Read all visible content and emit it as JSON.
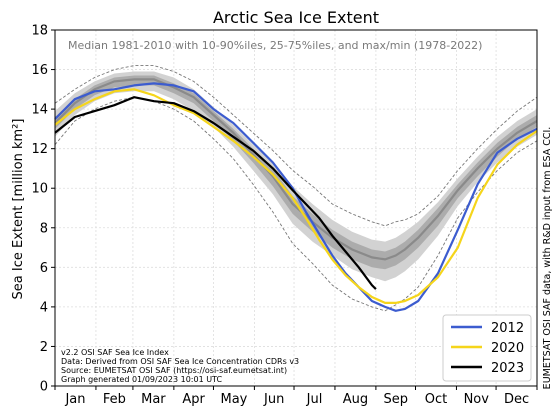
{
  "chart_data": {
    "type": "line",
    "title": "Arctic Sea Ice Extent",
    "subtitle": "Median 1981-2010 with 10-90%iles, 25-75%iles, and max/min (1978-2022)",
    "ylabel": "Sea Ice Extent [million km²]",
    "xlabel": "",
    "ylim": [
      0,
      18
    ],
    "yticks": [
      0,
      2,
      4,
      6,
      8,
      10,
      12,
      14,
      16,
      18
    ],
    "xlim": [
      0,
      365
    ],
    "months": [
      "Jan",
      "Feb",
      "Mar",
      "Apr",
      "May",
      "Jun",
      "Jul",
      "Aug",
      "Sep",
      "Oct",
      "Nov",
      "Dec"
    ],
    "grid": true,
    "legend_position": "bottom-right",
    "side_note": "EUMETSAT OSI SAF data, with R&D input from ESA CCI.",
    "notes": [
      "v2.2 OSI SAF Sea Ice Index",
      "Data: Derived from OSI SAF Sea Ice Concentration CDRs v3",
      "Source: EUMETSAT OSI SAF (https://osi-saf.eumetsat.int)",
      "Graph generated 01/09/2023 10:01 UTC"
    ],
    "x": [
      0,
      15,
      30,
      45,
      60,
      75,
      90,
      105,
      120,
      135,
      150,
      165,
      180,
      195,
      210,
      225,
      240,
      250,
      258,
      265,
      275,
      290,
      305,
      320,
      335,
      350,
      365
    ],
    "bands": {
      "max": [
        14.3,
        15.0,
        15.6,
        16.0,
        16.2,
        16.2,
        15.9,
        15.4,
        14.6,
        13.7,
        12.8,
        11.9,
        10.9,
        10.1,
        9.2,
        8.7,
        8.3,
        8.1,
        8.3,
        8.4,
        8.7,
        9.6,
        10.9,
        12.0,
        13.0,
        13.9,
        14.6
      ],
      "p90": [
        13.9,
        14.8,
        15.4,
        15.8,
        15.9,
        15.9,
        15.6,
        15.0,
        14.1,
        13.2,
        12.2,
        11.3,
        10.1,
        9.2,
        8.4,
        7.8,
        7.4,
        7.3,
        7.5,
        7.8,
        8.3,
        9.3,
        10.5,
        11.6,
        12.6,
        13.4,
        14.0
      ],
      "p75": [
        13.6,
        14.5,
        15.2,
        15.6,
        15.7,
        15.7,
        15.3,
        14.8,
        13.9,
        13.0,
        12.0,
        11.0,
        9.6,
        8.7,
        7.9,
        7.3,
        6.9,
        6.8,
        7.0,
        7.3,
        7.9,
        9.0,
        10.2,
        11.3,
        12.3,
        13.1,
        13.7
      ],
      "median": [
        13.3,
        14.3,
        15.0,
        15.4,
        15.5,
        15.5,
        15.1,
        14.6,
        13.7,
        12.8,
        11.7,
        10.6,
        9.2,
        8.3,
        7.5,
        6.9,
        6.5,
        6.4,
        6.6,
        6.9,
        7.5,
        8.6,
        9.9,
        11.0,
        12.0,
        12.8,
        13.4
      ],
      "p25": [
        13.0,
        14.0,
        14.7,
        15.1,
        15.2,
        15.2,
        14.8,
        14.3,
        13.4,
        12.4,
        11.3,
        10.1,
        8.7,
        7.8,
        7.0,
        6.4,
        6.0,
        5.9,
        6.1,
        6.4,
        7.0,
        8.1,
        9.5,
        10.6,
        11.6,
        12.5,
        13.1
      ],
      "p10": [
        12.6,
        13.7,
        14.4,
        14.8,
        14.9,
        14.9,
        14.5,
        13.9,
        13.1,
        12.1,
        10.9,
        9.7,
        8.2,
        7.3,
        6.6,
        5.9,
        5.5,
        5.3,
        5.5,
        5.8,
        6.4,
        7.6,
        9.1,
        10.3,
        11.3,
        12.1,
        12.7
      ],
      "min": [
        12.2,
        13.4,
        14.0,
        14.4,
        14.6,
        14.4,
        14.0,
        13.4,
        12.5,
        11.5,
        10.2,
        8.8,
        7.2,
        6.2,
        5.1,
        4.4,
        4.0,
        3.8,
        4.1,
        4.4,
        5.0,
        6.6,
        8.5,
        9.8,
        10.9,
        11.8,
        12.4
      ]
    },
    "series": [
      {
        "name": "2012",
        "color": "#3c5ccf",
        "x": [
          0,
          15,
          30,
          45,
          60,
          75,
          90,
          105,
          120,
          135,
          150,
          165,
          180,
          190,
          200,
          210,
          220,
          230,
          240,
          250,
          258,
          265,
          275,
          290,
          305,
          320,
          335,
          350,
          365
        ],
        "y": [
          13.5,
          14.5,
          14.9,
          15.0,
          15.2,
          15.3,
          15.2,
          14.9,
          14.0,
          13.3,
          12.3,
          11.3,
          10.0,
          8.8,
          7.7,
          6.6,
          5.7,
          5.0,
          4.3,
          4.0,
          3.8,
          3.9,
          4.3,
          5.7,
          7.9,
          10.2,
          11.8,
          12.5,
          13.0
        ]
      },
      {
        "name": "2020",
        "color": "#f5d51b",
        "x": [
          0,
          15,
          30,
          45,
          60,
          75,
          90,
          105,
          120,
          135,
          150,
          165,
          180,
          190,
          200,
          210,
          220,
          230,
          240,
          250,
          258,
          265,
          275,
          290,
          305,
          320,
          335,
          350,
          365
        ],
        "y": [
          13.2,
          14.0,
          14.5,
          14.9,
          15.0,
          14.7,
          14.2,
          13.8,
          13.1,
          12.4,
          11.6,
          10.7,
          9.5,
          8.5,
          7.4,
          6.4,
          5.6,
          5.0,
          4.5,
          4.2,
          4.2,
          4.3,
          4.6,
          5.5,
          7.0,
          9.5,
          11.2,
          12.2,
          12.9
        ]
      },
      {
        "name": "2023",
        "color": "#000000",
        "x": [
          0,
          15,
          30,
          45,
          60,
          75,
          90,
          105,
          120,
          135,
          150,
          165,
          180,
          190,
          200,
          210,
          220,
          230,
          240,
          243
        ],
        "y": [
          12.8,
          13.6,
          13.9,
          14.2,
          14.6,
          14.4,
          14.3,
          13.9,
          13.3,
          12.6,
          11.9,
          11.0,
          9.9,
          9.2,
          8.5,
          7.6,
          6.8,
          6.0,
          5.1,
          4.9
        ]
      }
    ]
  }
}
